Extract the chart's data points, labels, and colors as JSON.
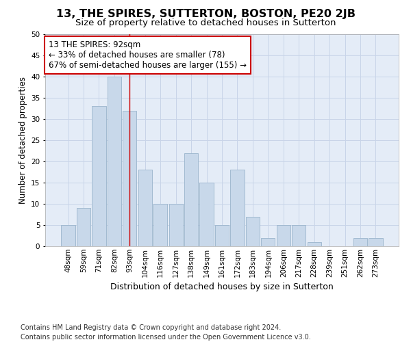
{
  "title": "13, THE SPIRES, SUTTERTON, BOSTON, PE20 2JB",
  "subtitle": "Size of property relative to detached houses in Sutterton",
  "xlabel": "Distribution of detached houses by size in Sutterton",
  "ylabel": "Number of detached properties",
  "categories": [
    "48sqm",
    "59sqm",
    "71sqm",
    "82sqm",
    "93sqm",
    "104sqm",
    "116sqm",
    "127sqm",
    "138sqm",
    "149sqm",
    "161sqm",
    "172sqm",
    "183sqm",
    "194sqm",
    "206sqm",
    "217sqm",
    "228sqm",
    "239sqm",
    "251sqm",
    "262sqm",
    "273sqm"
  ],
  "values": [
    5,
    9,
    33,
    40,
    32,
    18,
    10,
    10,
    22,
    15,
    5,
    18,
    7,
    2,
    5,
    5,
    1,
    0,
    0,
    2,
    2
  ],
  "bar_color": "#c8d8ea",
  "bar_edge_color": "#9ab4cc",
  "vline_x_index": 4,
  "vline_color": "#cc0000",
  "annotation_text": "13 THE SPIRES: 92sqm\n← 33% of detached houses are smaller (78)\n67% of semi-detached houses are larger (155) →",
  "annotation_box_color": "#ffffff",
  "annotation_box_edge_color": "#cc0000",
  "ylim": [
    0,
    50
  ],
  "yticks": [
    0,
    5,
    10,
    15,
    20,
    25,
    30,
    35,
    40,
    45,
    50
  ],
  "grid_color": "#c8d4e8",
  "bg_color": "#e4ecf7",
  "footer": "Contains HM Land Registry data © Crown copyright and database right 2024.\nContains public sector information licensed under the Open Government Licence v3.0.",
  "title_fontsize": 11.5,
  "subtitle_fontsize": 9.5,
  "xlabel_fontsize": 9,
  "ylabel_fontsize": 8.5,
  "tick_fontsize": 7.5,
  "annotation_fontsize": 8.5,
  "footer_fontsize": 7
}
